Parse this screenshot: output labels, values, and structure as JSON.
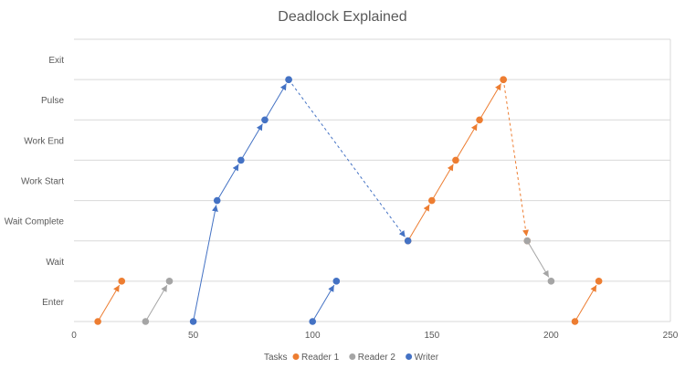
{
  "chart_data": {
    "type": "scatter",
    "title": "Deadlock Explained",
    "xlim": [
      0,
      250
    ],
    "xticks": [
      0,
      50,
      100,
      150,
      200,
      250
    ],
    "ylim": [
      0,
      7
    ],
    "ycategories": [
      "Enter",
      "Wait",
      "Wait Complete",
      "Work Start",
      "Work End",
      "Pulse",
      "Exit"
    ],
    "grid": true,
    "legend": {
      "title": "Tasks",
      "position": "bottom"
    },
    "series": [
      {
        "name": "Reader 1",
        "color": "#ED7D31",
        "paths": [
          {
            "style": "solid",
            "points": [
              [
                10,
                0
              ],
              [
                20,
                1
              ]
            ]
          },
          {
            "style": "solid",
            "points": [
              [
                140,
                2
              ],
              [
                150,
                3
              ],
              [
                160,
                4
              ],
              [
                170,
                5
              ],
              [
                180,
                6
              ]
            ]
          },
          {
            "style": "dashed",
            "points": [
              [
                180,
                6
              ],
              [
                190,
                2
              ]
            ]
          },
          {
            "style": "solid",
            "points": [
              [
                210,
                0
              ],
              [
                220,
                1
              ]
            ]
          }
        ]
      },
      {
        "name": "Reader 2",
        "color": "#A5A5A5",
        "paths": [
          {
            "style": "solid",
            "points": [
              [
                30,
                0
              ],
              [
                40,
                1
              ]
            ]
          },
          {
            "style": "solid",
            "points": [
              [
                190,
                2
              ],
              [
                200,
                1
              ]
            ]
          }
        ]
      },
      {
        "name": "Writer",
        "color": "#4472C4",
        "paths": [
          {
            "style": "solid",
            "points": [
              [
                50,
                0
              ],
              [
                60,
                3
              ],
              [
                70,
                4
              ],
              [
                80,
                5
              ],
              [
                90,
                6
              ]
            ]
          },
          {
            "style": "dashed",
            "points": [
              [
                90,
                6
              ],
              [
                140,
                2
              ]
            ]
          },
          {
            "style": "solid",
            "points": [
              [
                100,
                0
              ],
              [
                110,
                1
              ]
            ]
          }
        ]
      }
    ]
  }
}
